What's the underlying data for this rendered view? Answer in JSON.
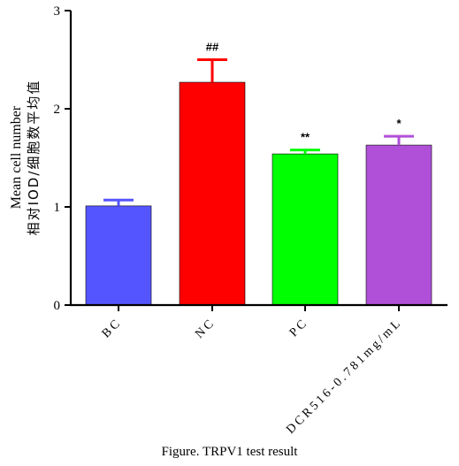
{
  "chart_data": {
    "type": "bar",
    "categories": [
      "BC",
      "NC",
      "PC",
      "DCR516-0.781mg/mL"
    ],
    "values": [
      1.01,
      2.27,
      1.54,
      1.63
    ],
    "errors": [
      0.06,
      0.23,
      0.04,
      0.09
    ],
    "annotations": [
      "",
      "##",
      "**",
      "*"
    ],
    "colors": [
      "#5555ff",
      "#ff0000",
      "#00ff00",
      "#b050d8"
    ],
    "ylabel_line1": "Mean cell number",
    "ylabel_line2": "相对IOD/细胞数平均值",
    "ylim": [
      0,
      3
    ],
    "yticks": [
      "0",
      "1",
      "2",
      "3"
    ]
  },
  "caption": "Figure. TRPV1 test result"
}
